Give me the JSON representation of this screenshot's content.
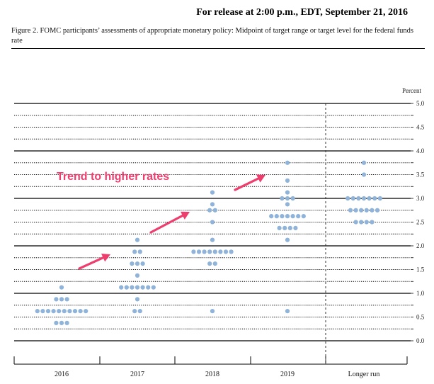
{
  "header": {
    "release": "For release at 2:00 p.m., EDT, September 21, 2016",
    "caption": "Figure 2. FOMC participants’ assessments of appropriate monetary policy: Midpoint of target range or target level for the federal funds rate"
  },
  "chart_data": {
    "type": "scatter",
    "ylabel": "Percent",
    "ylim": [
      0,
      5
    ],
    "yticks": [
      "0.0",
      "0.5",
      "1.0",
      "1.5",
      "2.0",
      "2.5",
      "3.0",
      "3.5",
      "4.0",
      "4.5",
      "5.0"
    ],
    "categories": [
      "2016",
      "2017",
      "2018",
      "2019",
      "Longer run"
    ],
    "dot_color": "#8fb3d9",
    "arrow_color": "#ee3e6e",
    "series": [
      {
        "category": "2016",
        "points": [
          {
            "y": 1.125,
            "count": 1
          },
          {
            "y": 0.875,
            "count": 3
          },
          {
            "y": 0.625,
            "count": 10
          },
          {
            "y": 0.375,
            "count": 3
          }
        ]
      },
      {
        "category": "2017",
        "points": [
          {
            "y": 2.125,
            "count": 1
          },
          {
            "y": 1.875,
            "count": 2
          },
          {
            "y": 1.625,
            "count": 3
          },
          {
            "y": 1.375,
            "count": 1
          },
          {
            "y": 1.125,
            "count": 7
          },
          {
            "y": 0.875,
            "count": 1
          },
          {
            "y": 0.625,
            "count": 2
          }
        ]
      },
      {
        "category": "2018",
        "points": [
          {
            "y": 3.125,
            "count": 1
          },
          {
            "y": 2.875,
            "count": 1
          },
          {
            "y": 2.75,
            "count": 2
          },
          {
            "y": 2.5,
            "count": 1
          },
          {
            "y": 2.125,
            "count": 1
          },
          {
            "y": 1.875,
            "count": 8
          },
          {
            "y": 1.625,
            "count": 2
          },
          {
            "y": 0.625,
            "count": 1
          }
        ]
      },
      {
        "category": "2019",
        "points": [
          {
            "y": 3.75,
            "count": 1
          },
          {
            "y": 3.375,
            "count": 1
          },
          {
            "y": 3.125,
            "count": 1
          },
          {
            "y": 3.0,
            "count": 3
          },
          {
            "y": 2.875,
            "count": 1
          },
          {
            "y": 2.625,
            "count": 7
          },
          {
            "y": 2.375,
            "count": 4
          },
          {
            "y": 2.125,
            "count": 1
          },
          {
            "y": 0.625,
            "count": 1
          }
        ]
      },
      {
        "category": "Longer run",
        "points": [
          {
            "y": 3.75,
            "count": 1
          },
          {
            "y": 3.5,
            "count": 1
          },
          {
            "y": 3.0,
            "count": 7
          },
          {
            "y": 2.75,
            "count": 6
          },
          {
            "y": 2.5,
            "count": 4
          }
        ]
      }
    ],
    "annotation": "Trend to higher rates"
  }
}
